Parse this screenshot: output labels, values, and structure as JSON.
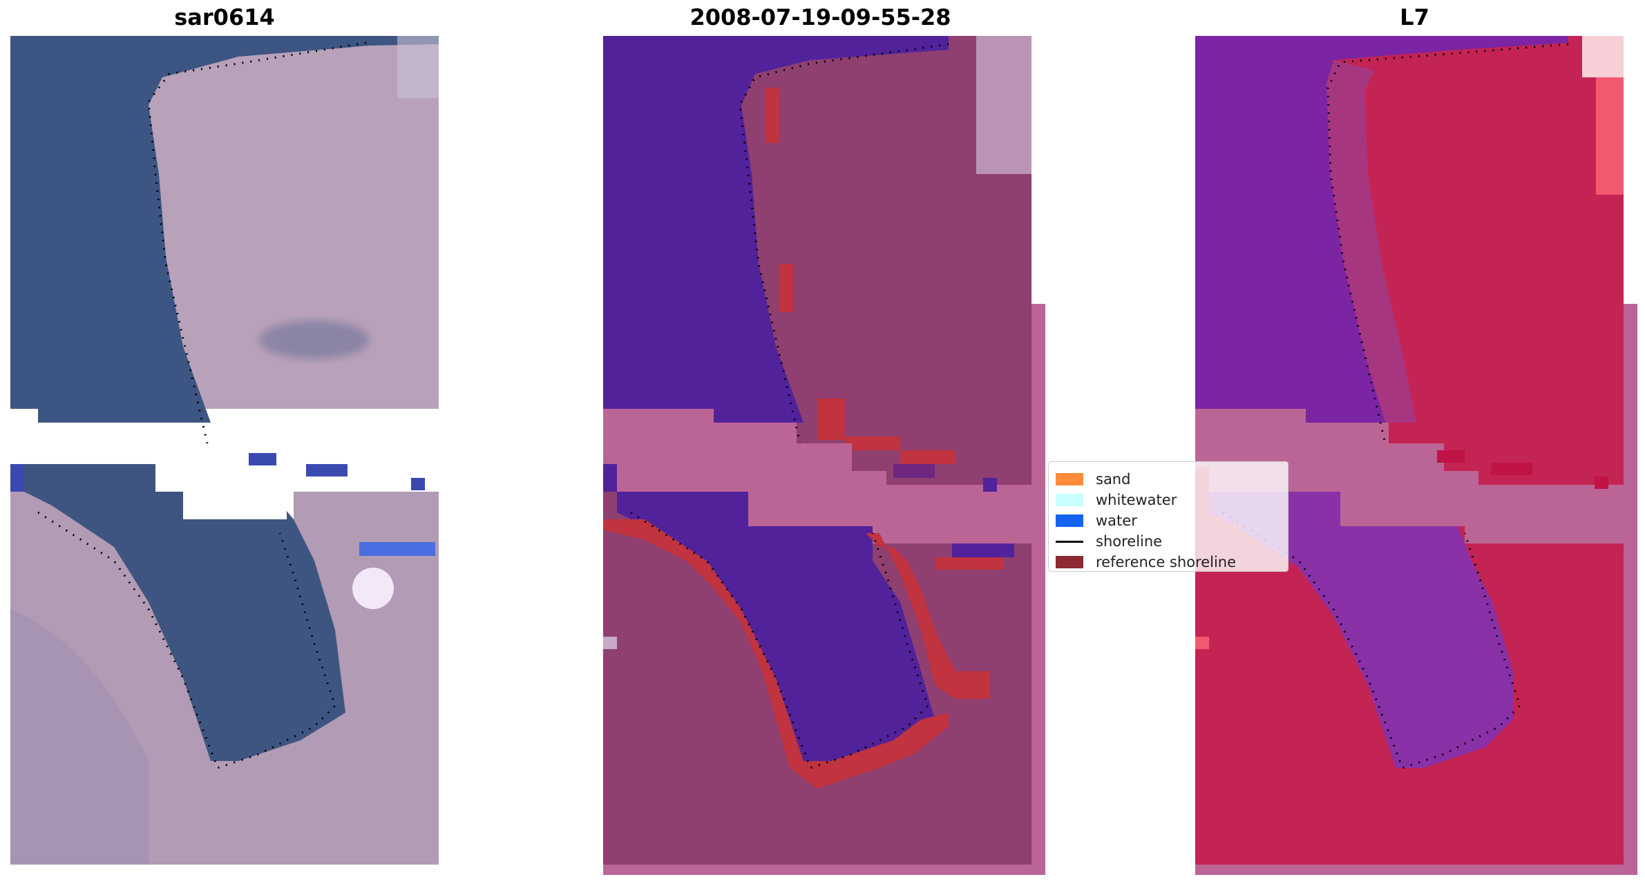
{
  "panels": [
    {
      "title": "sar0614"
    },
    {
      "title": "2008-07-19-09-55-28"
    },
    {
      "title": "L7"
    }
  ],
  "legend": {
    "items": [
      {
        "label": "sand",
        "color": "#ff8c3a",
        "kind": "patch"
      },
      {
        "label": "whitewater",
        "color": "#c8ffff",
        "kind": "patch"
      },
      {
        "label": "water",
        "color": "#1464f0",
        "kind": "patch"
      },
      {
        "label": "shoreline",
        "color": "#000000",
        "kind": "line"
      },
      {
        "label": "reference shoreline",
        "color": "#8b2a32",
        "kind": "patch"
      }
    ]
  },
  "colors": {
    "rgb_water": "#3f5582",
    "rgb_land": "#b6a0b7",
    "class_water": "#52229a",
    "class_land": "#8f3f70",
    "class_overlay": "#b86394",
    "class_shoreline": "#c0333f",
    "index_water": "#7b24a4",
    "index_land": "#c42453",
    "no_data_pink": "#bb6596"
  }
}
